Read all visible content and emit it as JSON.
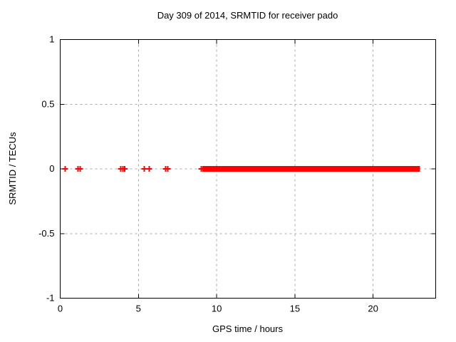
{
  "window": {
    "background": "#ffffff"
  },
  "chart_data": {
    "type": "scatter",
    "title": "Day 309 of 2014, SRMTID for receiver pado",
    "xlabel": "GPS time / hours",
    "ylabel": "SRMTID / TECUs",
    "xlim": [
      0,
      24
    ],
    "ylim": [
      -1,
      1
    ],
    "grid": true,
    "grid_style": "dashed",
    "legend_position": "none",
    "xticks": [
      {
        "v": 0,
        "label": "0"
      },
      {
        "v": 5,
        "label": "5"
      },
      {
        "v": 10,
        "label": "10"
      },
      {
        "v": 15,
        "label": "15"
      },
      {
        "v": 20,
        "label": "20"
      }
    ],
    "yticks": [
      {
        "v": 1,
        "label": "1"
      },
      {
        "v": 0.5,
        "label": "0.5"
      },
      {
        "v": 0,
        "label": "0"
      },
      {
        "v": -0.5,
        "label": "-0.5"
      },
      {
        "v": -1,
        "label": "-1"
      }
    ],
    "series": [
      {
        "name": "SRMTID",
        "marker": "plus",
        "marker_color": "#ff0000",
        "y_value": 0,
        "sparse_points_hours": [
          0.32,
          1.14,
          1.27,
          3.87,
          4.0,
          4.12,
          5.37,
          5.69,
          6.74,
          6.88,
          9.02,
          9.12
        ],
        "dense_bands_hours": [
          {
            "start": 9.28,
            "end": 13.7
          },
          {
            "start": 13.92,
            "end": 22.86
          }
        ]
      }
    ],
    "colors": {
      "axis": "#000000",
      "grid": "#a8a8a8",
      "marker": "#ff0000",
      "text": "#000000",
      "background": "#ffffff"
    }
  }
}
